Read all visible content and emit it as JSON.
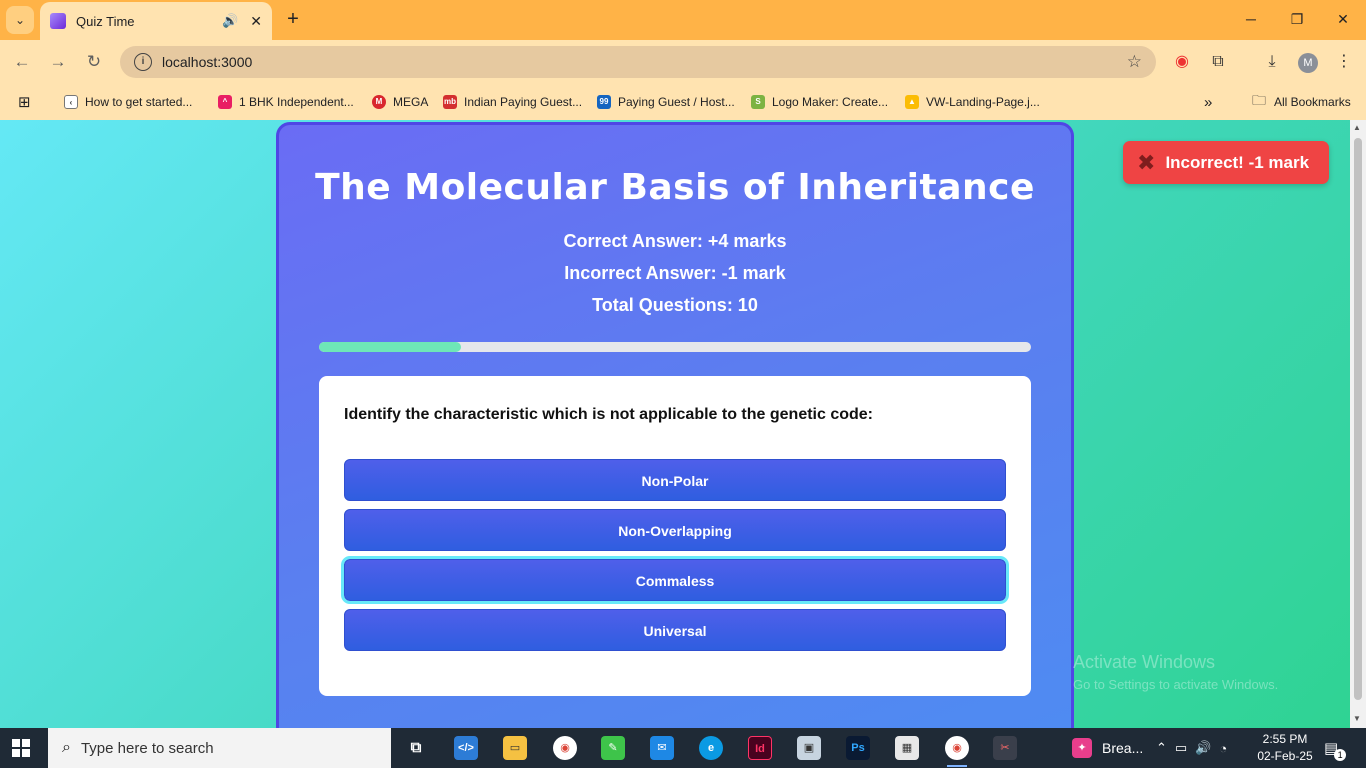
{
  "browser": {
    "tab_title": "Quiz Time",
    "tab_audio_icon": "speaker-icon",
    "tab_close": "✕",
    "new_tab": "+",
    "url": "localhost:3000",
    "bookmarks": [
      "How to get started...",
      "1 BHK Independent...",
      "MEGA",
      "Indian Paying Guest...",
      "Paying Guest / Host...",
      "Logo Maker: Create...",
      "VW-Landing-Page.j..."
    ],
    "all_bookmarks": "All Bookmarks",
    "profile_initial": "M"
  },
  "quiz": {
    "title": "The Molecular Basis of Inheritance",
    "correct_info": "Correct Answer: +4 marks",
    "incorrect_info": "Incorrect Answer: -1 mark",
    "total_info": "Total Questions: 10",
    "progress_fraction": 0.2,
    "question": "Identify the characteristic which is not applicable to the genetic code:",
    "options": [
      "Non-Polar",
      "Non-Overlapping",
      "Commaless",
      "Universal"
    ],
    "selected_option_index": 2
  },
  "toast": {
    "text": "Incorrect! -1 mark",
    "color": "#ef4444"
  },
  "watermark": {
    "line1": "Activate Windows",
    "line2": "Go to Settings to activate Windows."
  },
  "taskbar": {
    "search_placeholder": "Type here to search",
    "app_label": "Brea...",
    "time": "2:55 PM",
    "date": "02-Feb-25",
    "notification_count": "1"
  }
}
